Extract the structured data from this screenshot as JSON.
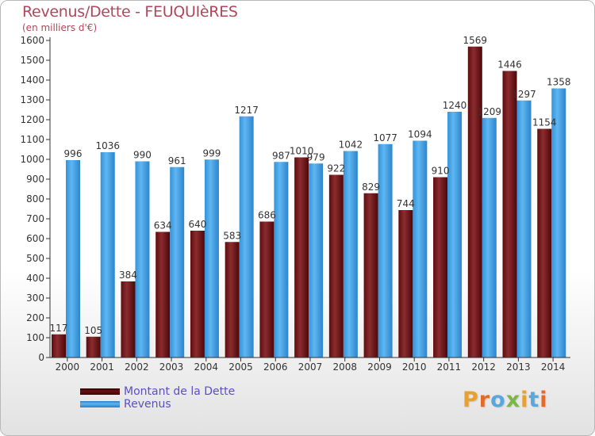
{
  "page": {
    "title": "Revenus/Dette - FEUQUIèRES",
    "subtitle": "(en milliers d'€)",
    "brand_letters": [
      "P",
      "r",
      "o",
      "x",
      "i",
      "t",
      "i"
    ],
    "brand_colors": [
      "#e8a130",
      "#e36b2a",
      "#5aa7dd",
      "#7ab743",
      "#e8a130",
      "#5aa7dd",
      "#e36b2a"
    ]
  },
  "colors": {
    "dette": "#7a1a1c",
    "revenus": "#3d9ee3",
    "axis": "#333333",
    "grid": "#9a9a9a"
  },
  "legend": {
    "items": [
      {
        "label": "Montant de la Dette",
        "color": "#6a0f12"
      },
      {
        "label": "Revenus",
        "color": "#3d9ee3"
      }
    ]
  },
  "chart_data": {
    "type": "bar",
    "categories": [
      "2000",
      "2001",
      "2002",
      "2003",
      "2004",
      "2005",
      "2006",
      "2007",
      "2008",
      "2009",
      "2010",
      "2011",
      "2012",
      "2013",
      "2014"
    ],
    "series": [
      {
        "name": "Montant de la Dette",
        "values": [
          117,
          105,
          384,
          634,
          640,
          583,
          686,
          1010,
          922,
          829,
          744,
          910,
          1569,
          1446,
          1154
        ]
      },
      {
        "name": "Revenus",
        "values": [
          996,
          1036,
          990,
          961,
          999,
          1217,
          987,
          979,
          1042,
          1077,
          1094,
          1240,
          1209,
          1297,
          1358
        ]
      }
    ],
    "value_labels": [
      [
        "117",
        "105",
        "384",
        "634",
        "640",
        "583",
        "686",
        "1010",
        "922",
        "829",
        "744",
        "910",
        "1569",
        "1446",
        "1154"
      ],
      [
        "996",
        "1036",
        "990",
        "961",
        "999",
        "1217",
        "987",
        "979",
        "1042",
        "1077",
        "1094",
        "1240",
        "1209",
        "1297",
        "1358"
      ]
    ],
    "title": "Revenus/Dette - FEUQUIèRES",
    "subtitle": "(en milliers d'€)",
    "xlabel": "",
    "ylabel": "",
    "ylim": [
      0,
      1600
    ],
    "yticks": [
      0,
      100,
      200,
      300,
      400,
      500,
      600,
      700,
      800,
      900,
      1000,
      1100,
      1200,
      1300,
      1400,
      1500,
      1600
    ],
    "grid": false,
    "legend_position": "bottom-left"
  }
}
